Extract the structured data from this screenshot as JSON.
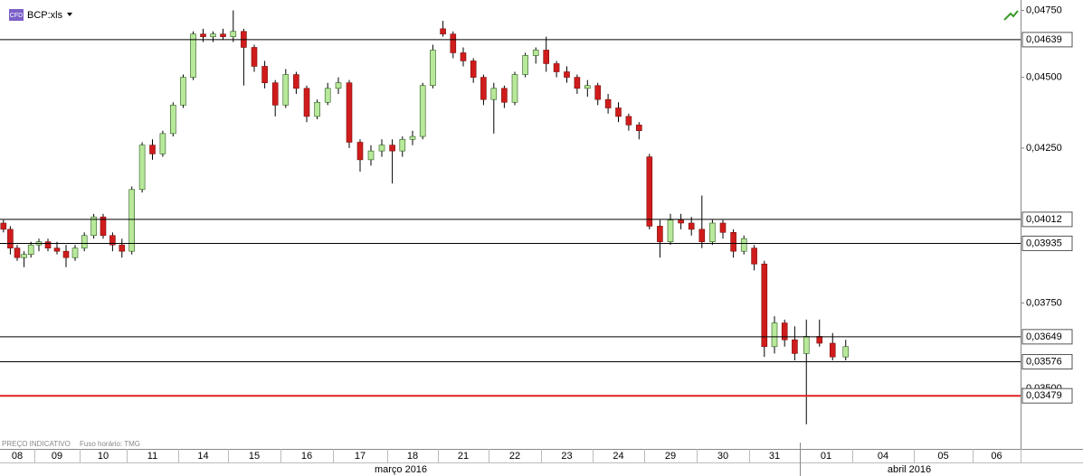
{
  "chart_data": {
    "type": "candlestick",
    "title": "BCP:xls",
    "badge": "CFD",
    "note": "PREÇO INDICATIVO",
    "timezone": "Fuso horário: TMG",
    "log_scale": true,
    "ylim": [
      0.0335,
      0.0479
    ],
    "yticks": [
      {
        "value": 0.0475,
        "label": "0,04750"
      },
      {
        "value": 0.045,
        "label": "0,04500"
      },
      {
        "value": 0.0425,
        "label": "0,04250"
      },
      {
        "value": 0.0375,
        "label": "0,03750"
      },
      {
        "value": 0.035,
        "label": "0,03500"
      }
    ],
    "levels": [
      {
        "value": 0.04639,
        "label": "0,04639",
        "color": "#000000"
      },
      {
        "value": 0.04012,
        "label": "0,04012",
        "color": "#000000"
      },
      {
        "value": 0.03935,
        "label": "0,03935",
        "color": "#000000"
      },
      {
        "value": 0.03649,
        "label": "0,03649",
        "color": "#000000"
      },
      {
        "value": 0.03576,
        "label": "0,03576",
        "color": "#000000"
      },
      {
        "value": 0.03479,
        "label": "0,03479",
        "color": "#e02020"
      }
    ],
    "up_color": "#b8e89a",
    "down_color": "#d01c1c",
    "categories": [
      "08",
      "09",
      "10",
      "11",
      "14",
      "15",
      "16",
      "17",
      "18",
      "21",
      "22",
      "23",
      "24",
      "29",
      "30",
      "31",
      "01",
      "04",
      "05",
      "06"
    ],
    "months": [
      "março 2016",
      "abril 2016"
    ],
    "candles": [
      [
        [
          0.04,
          0.0401,
          0.0397,
          0.0398
        ],
        [
          0.0398,
          0.0399,
          0.039,
          0.0392
        ],
        [
          0.0392,
          0.0393,
          0.0388,
          0.0389
        ],
        [
          0.0389,
          0.0391,
          0.0386,
          0.039
        ],
        [
          0.039,
          0.0394,
          0.0389,
          0.0393
        ]
      ],
      [
        [
          0.0393,
          0.0395,
          0.0391,
          0.0394
        ],
        [
          0.0394,
          0.0395,
          0.0391,
          0.0392
        ],
        [
          0.0392,
          0.0394,
          0.039,
          0.0391
        ],
        [
          0.0391,
          0.0393,
          0.0386,
          0.0389
        ],
        [
          0.0389,
          0.0393,
          0.0388,
          0.0392
        ]
      ],
      [
        [
          0.0392,
          0.0397,
          0.0391,
          0.0396
        ],
        [
          0.0396,
          0.0403,
          0.0395,
          0.0402
        ],
        [
          0.0402,
          0.0403,
          0.0395,
          0.0396
        ],
        [
          0.0396,
          0.0397,
          0.0391,
          0.0393
        ],
        [
          0.0393,
          0.0395,
          0.0389,
          0.0391
        ]
      ],
      [
        [
          0.0391,
          0.0412,
          0.039,
          0.0411
        ],
        [
          0.0411,
          0.0427,
          0.041,
          0.0426
        ],
        [
          0.0426,
          0.0428,
          0.0421,
          0.0423
        ],
        [
          0.0423,
          0.0431,
          0.0422,
          0.043
        ],
        [
          0.043,
          0.0441,
          0.0429,
          0.044
        ]
      ],
      [
        [
          0.044,
          0.0451,
          0.0439,
          0.045
        ],
        [
          0.045,
          0.0467,
          0.0449,
          0.0466
        ],
        [
          0.0466,
          0.0468,
          0.0463,
          0.0465
        ],
        [
          0.0465,
          0.0467,
          0.0463,
          0.0466
        ],
        [
          0.0466,
          0.0468,
          0.0464,
          0.0465
        ]
      ],
      [
        [
          0.0465,
          0.0475,
          0.0463,
          0.0467
        ],
        [
          0.0467,
          0.0468,
          0.0447,
          0.0461
        ],
        [
          0.0461,
          0.0462,
          0.0452,
          0.0454
        ],
        [
          0.0454,
          0.0456,
          0.0446,
          0.0448
        ],
        [
          0.0448,
          0.0449,
          0.0436,
          0.044
        ]
      ],
      [
        [
          0.044,
          0.0453,
          0.0439,
          0.0451
        ],
        [
          0.0451,
          0.0452,
          0.0444,
          0.0446
        ],
        [
          0.0446,
          0.0447,
          0.0434,
          0.0436
        ],
        [
          0.0436,
          0.0442,
          0.0435,
          0.0441
        ],
        [
          0.0441,
          0.0448,
          0.044,
          0.0446
        ]
      ],
      [
        [
          0.0446,
          0.045,
          0.0444,
          0.0448
        ],
        [
          0.0448,
          0.0449,
          0.0425,
          0.0427
        ],
        [
          0.0427,
          0.0428,
          0.0417,
          0.0421
        ],
        [
          0.0421,
          0.0426,
          0.0419,
          0.0424
        ],
        [
          0.0424,
          0.0428,
          0.0422,
          0.0426
        ]
      ],
      [
        [
          0.0426,
          0.0428,
          0.0413,
          0.0424
        ],
        [
          0.0424,
          0.0429,
          0.0422,
          0.0428
        ],
        [
          0.0428,
          0.0431,
          0.0426,
          0.0429
        ],
        [
          0.0429,
          0.0448,
          0.0428,
          0.0447
        ],
        [
          0.0447,
          0.0462,
          0.0446,
          0.046
        ]
      ],
      [
        [
          0.0468,
          0.0471,
          0.0465,
          0.0466
        ],
        [
          0.0466,
          0.0467,
          0.0457,
          0.0459
        ],
        [
          0.0459,
          0.0461,
          0.0454,
          0.0456
        ],
        [
          0.0456,
          0.0457,
          0.0448,
          0.045
        ],
        [
          0.045,
          0.0451,
          0.044,
          0.0442
        ]
      ],
      [
        [
          0.0442,
          0.0448,
          0.043,
          0.0446
        ],
        [
          0.0446,
          0.0447,
          0.0439,
          0.0441
        ],
        [
          0.0441,
          0.0452,
          0.044,
          0.0451
        ],
        [
          0.0451,
          0.0459,
          0.045,
          0.0458
        ],
        [
          0.0458,
          0.0461,
          0.0455,
          0.046
        ]
      ],
      [
        [
          0.046,
          0.0465,
          0.0452,
          0.0455
        ],
        [
          0.0455,
          0.0456,
          0.045,
          0.0452
        ],
        [
          0.0452,
          0.0454,
          0.0448,
          0.045
        ],
        [
          0.045,
          0.0451,
          0.0444,
          0.0446
        ],
        [
          0.0446,
          0.0449,
          0.0443,
          0.0447
        ]
      ],
      [
        [
          0.0447,
          0.0448,
          0.044,
          0.0442
        ],
        [
          0.0442,
          0.0444,
          0.0437,
          0.0439
        ],
        [
          0.0439,
          0.0441,
          0.0434,
          0.0436
        ],
        [
          0.0436,
          0.0437,
          0.0431,
          0.0433
        ],
        [
          0.0433,
          0.0434,
          0.0428,
          0.0431
        ]
      ],
      [
        [
          0.0422,
          0.0423,
          0.0398,
          0.0399
        ],
        [
          0.0399,
          0.0401,
          0.0389,
          0.0394
        ],
        [
          0.0394,
          0.0403,
          0.0393,
          0.0401
        ],
        [
          0.0401,
          0.0403,
          0.0398,
          0.04
        ],
        [
          0.04,
          0.0402,
          0.0396,
          0.0398
        ]
      ],
      [
        [
          0.0398,
          0.0409,
          0.0392,
          0.0394
        ],
        [
          0.0394,
          0.0401,
          0.0393,
          0.04
        ],
        [
          0.04,
          0.0401,
          0.0395,
          0.0397
        ],
        [
          0.0397,
          0.0398,
          0.0389,
          0.0391
        ],
        [
          0.0391,
          0.0396,
          0.039,
          0.0395
        ]
      ],
      [
        [
          0.0392,
          0.0393,
          0.0385,
          0.0387
        ],
        [
          0.0387,
          0.0388,
          0.0359,
          0.0362
        ],
        [
          0.0362,
          0.0371,
          0.036,
          0.0369
        ],
        [
          0.0369,
          0.037,
          0.0362,
          0.0364
        ],
        [
          0.0364,
          0.0368,
          0.0358,
          0.036
        ]
      ],
      [
        [
          0.036,
          0.037,
          0.034,
          0.0365
        ],
        [
          0.0365,
          0.037,
          0.0362,
          0.0363
        ],
        [
          0.0363,
          0.0366,
          0.0358,
          0.0359
        ],
        [
          0.0359,
          0.0364,
          0.0358,
          0.0362
        ]
      ],
      [],
      [],
      []
    ]
  }
}
